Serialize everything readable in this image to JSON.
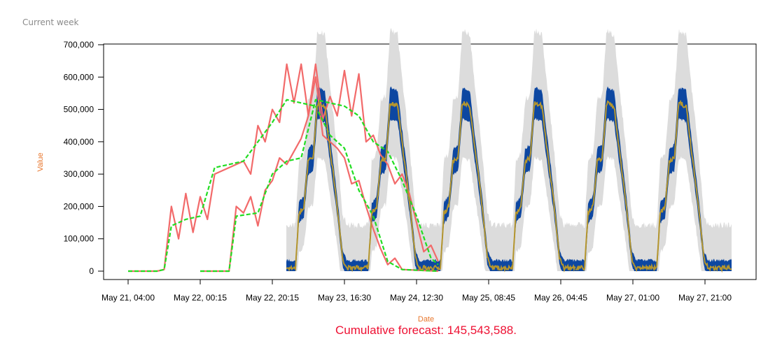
{
  "section_title": "Current week",
  "chart_data": {
    "type": "line",
    "xlabel": "Date",
    "ylabel": "Value",
    "ylim": [
      0,
      700000
    ],
    "y_ticks": [
      0,
      100000,
      200000,
      300000,
      400000,
      500000,
      600000,
      700000
    ],
    "y_tick_labels": [
      "0",
      "100,000",
      "200,000",
      "300,000",
      "400,000",
      "500,000",
      "600,000",
      "700,000"
    ],
    "x_tick_labels": [
      "May 21, 04:00",
      "May 22, 00:15",
      "May 22, 20:15",
      "May 23, 16:30",
      "May 24, 12:30",
      "May 25, 08:45",
      "May 26, 04:45",
      "May 27, 01:00",
      "May 27, 21:00"
    ],
    "grid": false,
    "note": "Cumulative forecast: 145,543,588.",
    "series": [
      {
        "role": "observed",
        "color": "#f26a6a",
        "day_shapes": [
          [
            [
              0,
              0
            ],
            [
              0.4,
              0
            ],
            [
              0.5,
              5000
            ],
            [
              0.6,
              200000
            ],
            [
              0.7,
              100000
            ],
            [
              0.8,
              240000
            ],
            [
              0.9,
              120000
            ],
            [
              1,
              230000
            ],
            [
              1.1,
              160000
            ],
            [
              1.2,
              300000
            ],
            [
              1.4,
              320000
            ],
            [
              1.6,
              340000
            ],
            [
              1.7,
              300000
            ],
            [
              1.8,
              450000
            ],
            [
              1.9,
              400000
            ],
            [
              2.0,
              500000
            ],
            [
              2.1,
              460000
            ],
            [
              2.2,
              640000
            ],
            [
              2.3,
              520000
            ],
            [
              2.4,
              640000
            ],
            [
              2.5,
              480000
            ],
            [
              2.6,
              600000
            ],
            [
              2.7,
              420000
            ],
            [
              2.9,
              380000
            ],
            [
              3.0,
              350000
            ],
            [
              3.1,
              270000
            ],
            [
              3.2,
              280000
            ],
            [
              3.3,
              200000
            ],
            [
              3.4,
              130000
            ],
            [
              3.5,
              70000
            ],
            [
              3.6,
              20000
            ],
            [
              3.7,
              40000
            ],
            [
              3.8,
              5000
            ],
            [
              4.3,
              0
            ]
          ],
          [
            [
              0,
              0
            ],
            [
              0.4,
              0
            ],
            [
              0.5,
              200000
            ],
            [
              0.6,
              180000
            ],
            [
              0.7,
              230000
            ],
            [
              0.8,
              140000
            ],
            [
              0.9,
              250000
            ],
            [
              1,
              280000
            ],
            [
              1.1,
              350000
            ],
            [
              1.2,
              330000
            ],
            [
              1.3,
              370000
            ],
            [
              1.4,
              410000
            ],
            [
              1.5,
              480000
            ],
            [
              1.6,
              640000
            ],
            [
              1.7,
              470000
            ],
            [
              1.8,
              540000
            ],
            [
              1.9,
              480000
            ],
            [
              2.0,
              620000
            ],
            [
              2.1,
              480000
            ],
            [
              2.2,
              610000
            ],
            [
              2.3,
              400000
            ],
            [
              2.4,
              420000
            ],
            [
              2.5,
              360000
            ],
            [
              2.6,
              330000
            ],
            [
              2.7,
              270000
            ],
            [
              2.8,
              300000
            ],
            [
              2.9,
              240000
            ],
            [
              3.0,
              150000
            ],
            [
              3.1,
              60000
            ],
            [
              3.2,
              80000
            ],
            [
              3.3,
              30000
            ]
          ]
        ]
      },
      {
        "role": "fitted",
        "color": "#22dd22",
        "day_shapes": [
          [
            [
              0,
              0
            ],
            [
              0.4,
              0
            ],
            [
              0.5,
              5000
            ],
            [
              0.6,
              140000
            ],
            [
              0.8,
              160000
            ],
            [
              1,
              170000
            ],
            [
              1.2,
              320000
            ],
            [
              1.4,
              330000
            ],
            [
              1.6,
              340000
            ],
            [
              1.8,
              400000
            ],
            [
              2.0,
              460000
            ],
            [
              2.2,
              530000
            ],
            [
              2.4,
              520000
            ],
            [
              2.6,
              510000
            ],
            [
              2.8,
              420000
            ],
            [
              3.0,
              380000
            ],
            [
              3.2,
              250000
            ],
            [
              3.4,
              170000
            ],
            [
              3.6,
              30000
            ],
            [
              3.8,
              5000
            ],
            [
              4.3,
              0
            ]
          ],
          [
            [
              0,
              0
            ],
            [
              0.4,
              0
            ],
            [
              0.5,
              170000
            ],
            [
              0.8,
              180000
            ],
            [
              1,
              300000
            ],
            [
              1.2,
              340000
            ],
            [
              1.4,
              350000
            ],
            [
              1.6,
              530000
            ],
            [
              1.8,
              520000
            ],
            [
              2.0,
              510000
            ],
            [
              2.2,
              480000
            ],
            [
              2.4,
              400000
            ],
            [
              2.6,
              370000
            ],
            [
              2.8,
              280000
            ],
            [
              3.0,
              170000
            ],
            [
              3.2,
              40000
            ],
            [
              3.3,
              20000
            ]
          ]
        ]
      },
      {
        "role": "forecast",
        "color": "#b5962e",
        "band_color": "#0d47a1",
        "ci_color": "#dcdcdc",
        "day_profile": [
          [
            0,
            10000
          ],
          [
            0.55,
            10000
          ],
          [
            0.75,
            180000
          ],
          [
            1.05,
            200000
          ],
          [
            1.3,
            340000
          ],
          [
            1.6,
            350000
          ],
          [
            1.85,
            520000
          ],
          [
            2.3,
            510000
          ],
          [
            2.55,
            400000
          ],
          [
            2.85,
            280000
          ],
          [
            3.1,
            170000
          ],
          [
            3.35,
            40000
          ],
          [
            3.6,
            10000
          ],
          [
            4.3,
            10000
          ]
        ]
      }
    ]
  },
  "x_axis_title": "Date",
  "cumulative_label": "Cumulative forecast: 145,543,588."
}
